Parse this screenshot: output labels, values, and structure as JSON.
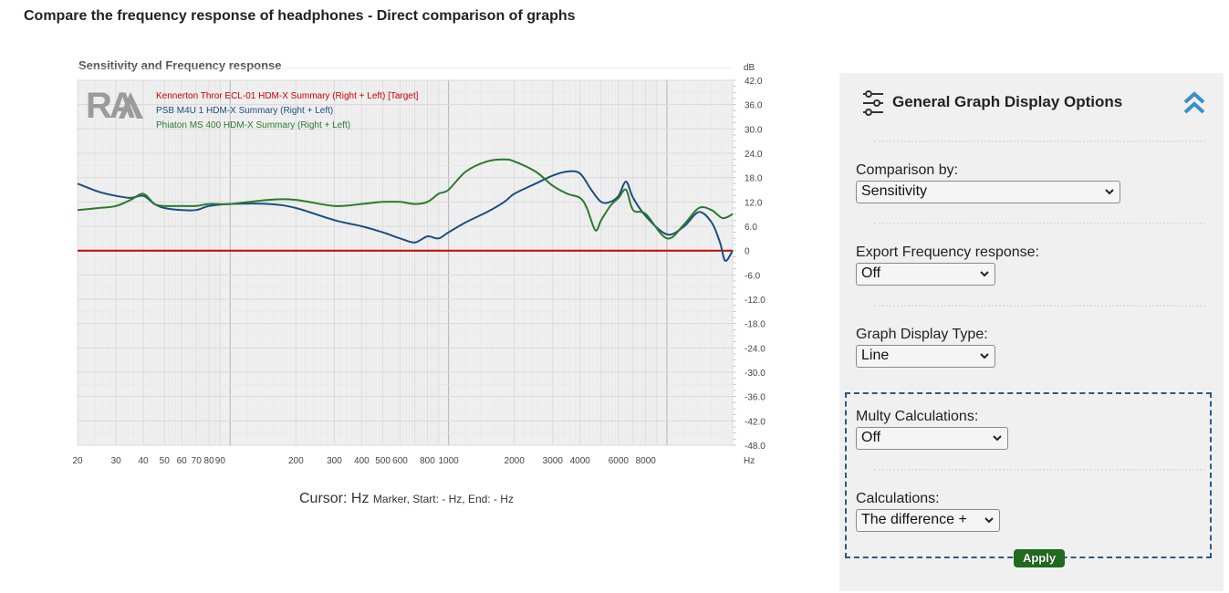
{
  "page": {
    "title": "Compare the frequency response of headphones - Direct comparison of graphs"
  },
  "chart": {
    "title": "Sensitivity and Frequency response",
    "logo_text": "RA",
    "cursor_label": "Cursor:",
    "cursor_unit": "Hz",
    "cursor_detail": "Marker, Start: - Hz, End: - Hz"
  },
  "chart_data": {
    "type": "line",
    "title": "Sensitivity and Frequency response",
    "xlabel": "Hz",
    "ylabel": "dB",
    "x_scale": "log",
    "xlim": [
      20,
      20000
    ],
    "ylim": [
      -48,
      42
    ],
    "grid": true,
    "legend_position": "top-left",
    "x_tick_labels": [
      "20",
      "30",
      "40",
      "50",
      "60",
      "70",
      "80",
      "90",
      "200",
      "300",
      "400",
      "500",
      "600",
      "800",
      "1000",
      "2000",
      "3000",
      "4000",
      "6000",
      "8000"
    ],
    "y_tick_labels": [
      "42.0",
      "36.0",
      "30.0",
      "24.0",
      "18.0",
      "12.0",
      "6.0",
      "0",
      "-6.0",
      "-12.0",
      "-18.0",
      "-24.0",
      "-30.0",
      "-36.0",
      "-42.0",
      "-48.0"
    ],
    "series": [
      {
        "name": "Kennerton Thror ECL-01 HDM-X Summary (Right + Left) [Target]",
        "color": "#cc0000",
        "x": [
          20,
          20000
        ],
        "y": [
          0,
          0
        ]
      },
      {
        "name": "PSB M4U 1 HDM-X Summary (Right + Left)",
        "color": "#1a4f80",
        "x": [
          20,
          25,
          30,
          35,
          40,
          45,
          50,
          60,
          70,
          80,
          100,
          150,
          200,
          300,
          400,
          500,
          600,
          700,
          800,
          900,
          1000,
          1200,
          1500,
          1800,
          2000,
          2500,
          3000,
          3500,
          4000,
          4500,
          5000,
          5500,
          6000,
          6500,
          7000,
          8000,
          10000,
          12000,
          14000,
          16000,
          17500,
          18500,
          20000
        ],
        "y": [
          16.5,
          14.5,
          13.5,
          13,
          13.5,
          11.5,
          10.5,
          10,
          10,
          11,
          11.5,
          11.5,
          10.5,
          7.5,
          6,
          4.5,
          3,
          2,
          3.5,
          3,
          4.5,
          7,
          9.5,
          12,
          14,
          16.5,
          18.5,
          19.5,
          19,
          15,
          12,
          12,
          13.5,
          17,
          13,
          8.5,
          4,
          6,
          9.5,
          7,
          2,
          -2.5,
          0
        ]
      },
      {
        "name": "Phiaton MS 400 HDM-X Summary (Right + Left)",
        "color": "#2a7a2a",
        "x": [
          20,
          25,
          30,
          35,
          40,
          45,
          50,
          60,
          70,
          80,
          100,
          150,
          200,
          300,
          400,
          500,
          600,
          700,
          800,
          900,
          1000,
          1200,
          1500,
          1800,
          2000,
          2500,
          3000,
          3500,
          4000,
          4300,
          4700,
          5000,
          5500,
          6000,
          6500,
          7000,
          8000,
          10000,
          12000,
          14000,
          16000,
          18000,
          20000
        ],
        "y": [
          10,
          10.5,
          11,
          12.5,
          14,
          11.5,
          11,
          11,
          11,
          11.5,
          11.5,
          12.5,
          12.5,
          11,
          11.5,
          12,
          12,
          11.5,
          12,
          14,
          15,
          19.5,
          22,
          22.5,
          22,
          19.5,
          16,
          14,
          13,
          10.5,
          5,
          7.5,
          11,
          13,
          15,
          10,
          9,
          3,
          6.5,
          10.5,
          10,
          8,
          9
        ]
      }
    ]
  },
  "panel": {
    "title": "General Graph Display Options",
    "comparison_label": "Comparison by:",
    "comparison_value": "Sensitivity",
    "export_label": "Export Frequency response:",
    "export_value": "Off",
    "display_type_label": "Graph Display Type:",
    "display_type_value": "Line",
    "multy_label": "Multy Calculations:",
    "multy_value": "Off",
    "calculations_label": "Calculations:",
    "calculations_value": "The difference +",
    "apply_label": "Apply"
  }
}
